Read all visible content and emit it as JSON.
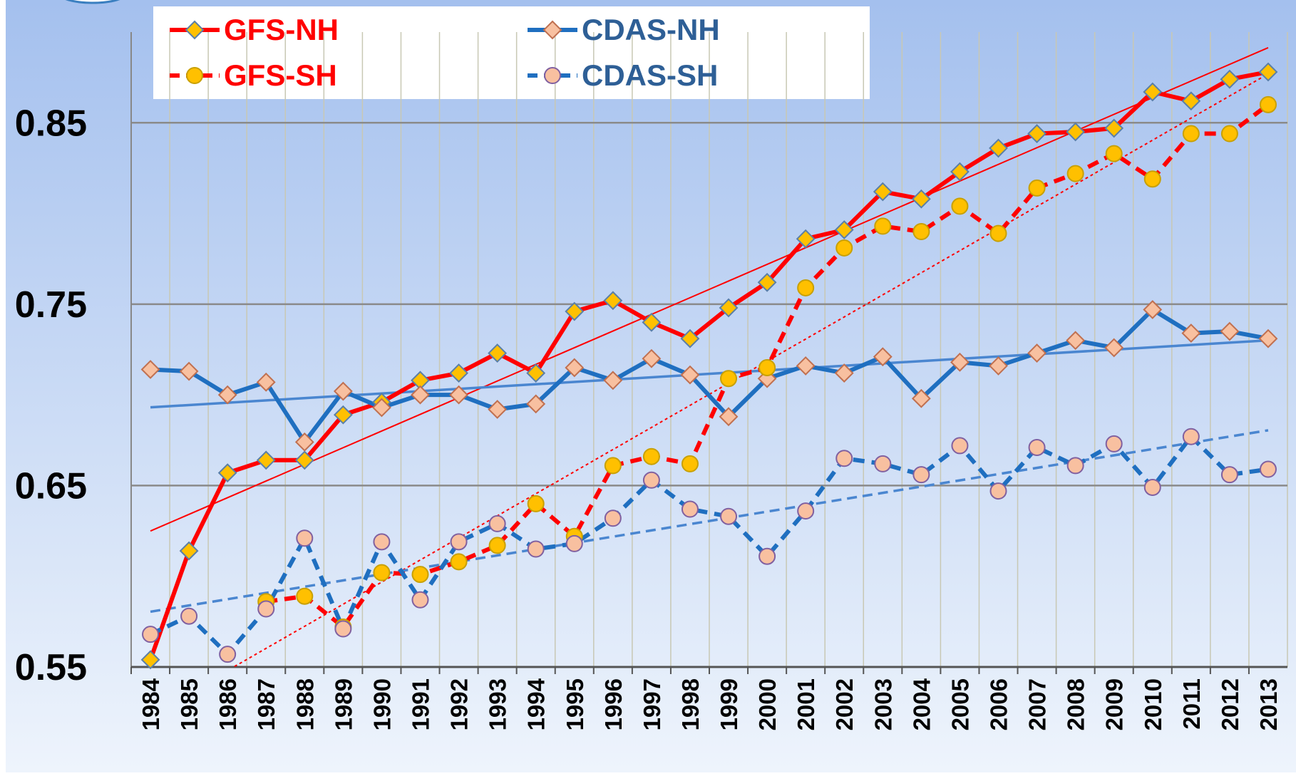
{
  "chart_data": {
    "type": "line",
    "categories": [
      "1984",
      "1985",
      "1986",
      "1987",
      "1988",
      "1989",
      "1990",
      "1991",
      "1992",
      "1993",
      "1994",
      "1995",
      "1996",
      "1997",
      "1998",
      "1999",
      "2000",
      "2001",
      "2002",
      "2003",
      "2004",
      "2005",
      "2006",
      "2007",
      "2008",
      "2009",
      "2010",
      "2011",
      "2012",
      "2013"
    ],
    "ylim": [
      0.55,
      0.9
    ],
    "yticks": [
      0.55,
      0.65,
      0.75,
      0.85
    ],
    "grid": true,
    "series": [
      {
        "name": "GFS-NH",
        "color": "#ff0000",
        "label_color": "#ff0000",
        "dash": false,
        "marker": "diamond",
        "marker_color": "#ffc000",
        "marker_stroke": "#5a7fa8",
        "trendline": true,
        "values": [
          0.554,
          0.614,
          0.657,
          0.664,
          0.664,
          0.689,
          0.696,
          0.708,
          0.712,
          0.723,
          0.712,
          0.746,
          0.752,
          0.74,
          0.731,
          0.748,
          0.762,
          0.786,
          0.791,
          0.812,
          0.808,
          0.823,
          0.836,
          0.844,
          0.845,
          0.847,
          0.867,
          0.862,
          0.874,
          0.878
        ]
      },
      {
        "name": "CDAS-NH",
        "color": "#1f6fc0",
        "label_color": "#2e5f96",
        "dash": false,
        "marker": "diamond",
        "marker_color": "#f8c0a0",
        "marker_stroke": "#c07050",
        "trendline": true,
        "values": [
          0.714,
          0.713,
          0.7,
          0.707,
          0.674,
          0.702,
          0.693,
          0.7,
          0.7,
          0.692,
          0.695,
          0.715,
          0.708,
          0.72,
          0.711,
          0.688,
          0.709,
          0.716,
          0.712,
          0.721,
          0.698,
          0.718,
          0.716,
          0.723,
          0.73,
          0.726,
          0.747,
          0.734,
          0.735,
          0.731
        ]
      },
      {
        "name": "GFS-SH",
        "color": "#ff0000",
        "label_color": "#ff0000",
        "dash": true,
        "marker": "circle",
        "marker_color": "#ffc000",
        "marker_stroke": "#c8a000",
        "trendline": true,
        "values": [
          null,
          null,
          null,
          0.586,
          0.589,
          0.572,
          0.602,
          0.601,
          0.608,
          0.617,
          0.64,
          0.622,
          0.661,
          0.666,
          0.662,
          0.709,
          0.715,
          0.759,
          0.781,
          0.793,
          0.79,
          0.804,
          0.789,
          0.814,
          0.822,
          0.833,
          0.819,
          0.844,
          0.844,
          0.86
        ]
      },
      {
        "name": "CDAS-SH",
        "color": "#1f6fc0",
        "label_color": "#2e5f96",
        "dash": true,
        "marker": "circle",
        "marker_color": "#f8c0a0",
        "marker_stroke": "#8060a0",
        "trendline": true,
        "values": [
          0.568,
          0.578,
          0.557,
          0.582,
          0.621,
          0.571,
          0.619,
          0.587,
          0.619,
          0.629,
          0.615,
          0.618,
          0.632,
          0.653,
          0.637,
          0.633,
          0.611,
          0.636,
          0.665,
          0.662,
          0.656,
          0.672,
          0.647,
          0.671,
          0.661,
          0.673,
          0.649,
          0.677,
          0.656,
          0.659
        ]
      }
    ]
  }
}
